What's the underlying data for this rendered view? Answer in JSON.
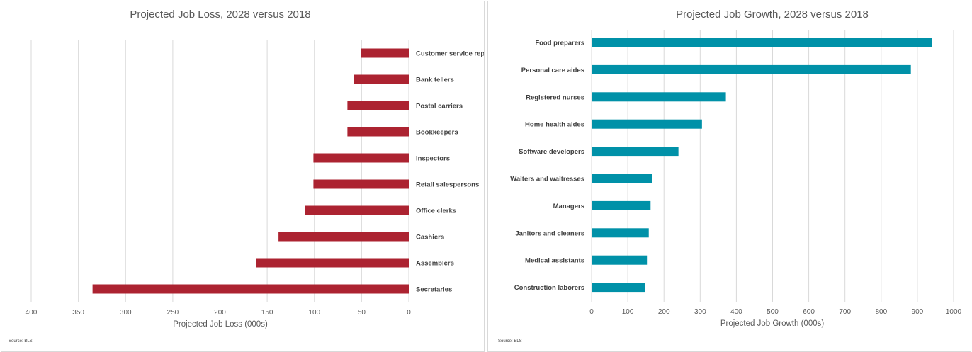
{
  "chart_data": [
    {
      "type": "bar",
      "orientation": "horizontal",
      "title": "Projected Job Loss, 2028 versus 2018",
      "xlabel": "Projected Job Loss (000s)",
      "ylabel": "",
      "xlim": [
        0,
        400
      ],
      "x_reversed": true,
      "ticks": [
        400,
        350,
        300,
        250,
        200,
        150,
        100,
        50,
        0
      ],
      "grid": true,
      "color": "#ac2331",
      "source": "Source: BLS",
      "categories": [
        "Customer service reps",
        "Bank tellers",
        "Postal carriers",
        "Bookkeepers",
        "Inspectors",
        "Retail salespersons",
        "Office clerks",
        "Cashiers",
        "Assemblers",
        "Secretaries"
      ],
      "values": [
        51,
        58,
        65,
        65,
        101,
        101,
        110,
        138,
        162,
        335
      ]
    },
    {
      "type": "bar",
      "orientation": "horizontal",
      "title": "Projected Job Growth, 2028 versus 2018",
      "xlabel": "Projected Job Growth (000s)",
      "ylabel": "",
      "xlim": [
        0,
        1000
      ],
      "ticks": [
        0,
        100,
        200,
        300,
        400,
        500,
        600,
        700,
        800,
        900,
        1000
      ],
      "grid": true,
      "color": "#0091a8",
      "source": "Source: BLS",
      "categories": [
        "Food preparers",
        "Personal care aides",
        "Registered nurses",
        "Home health aides",
        "Software developers",
        "Waiters and waitresses",
        "Managers",
        "Janitors and cleaners",
        "Medical assistants",
        "Construction laborers"
      ],
      "values": [
        940,
        882,
        371,
        305,
        240,
        168,
        163,
        158,
        153,
        147
      ]
    }
  ]
}
